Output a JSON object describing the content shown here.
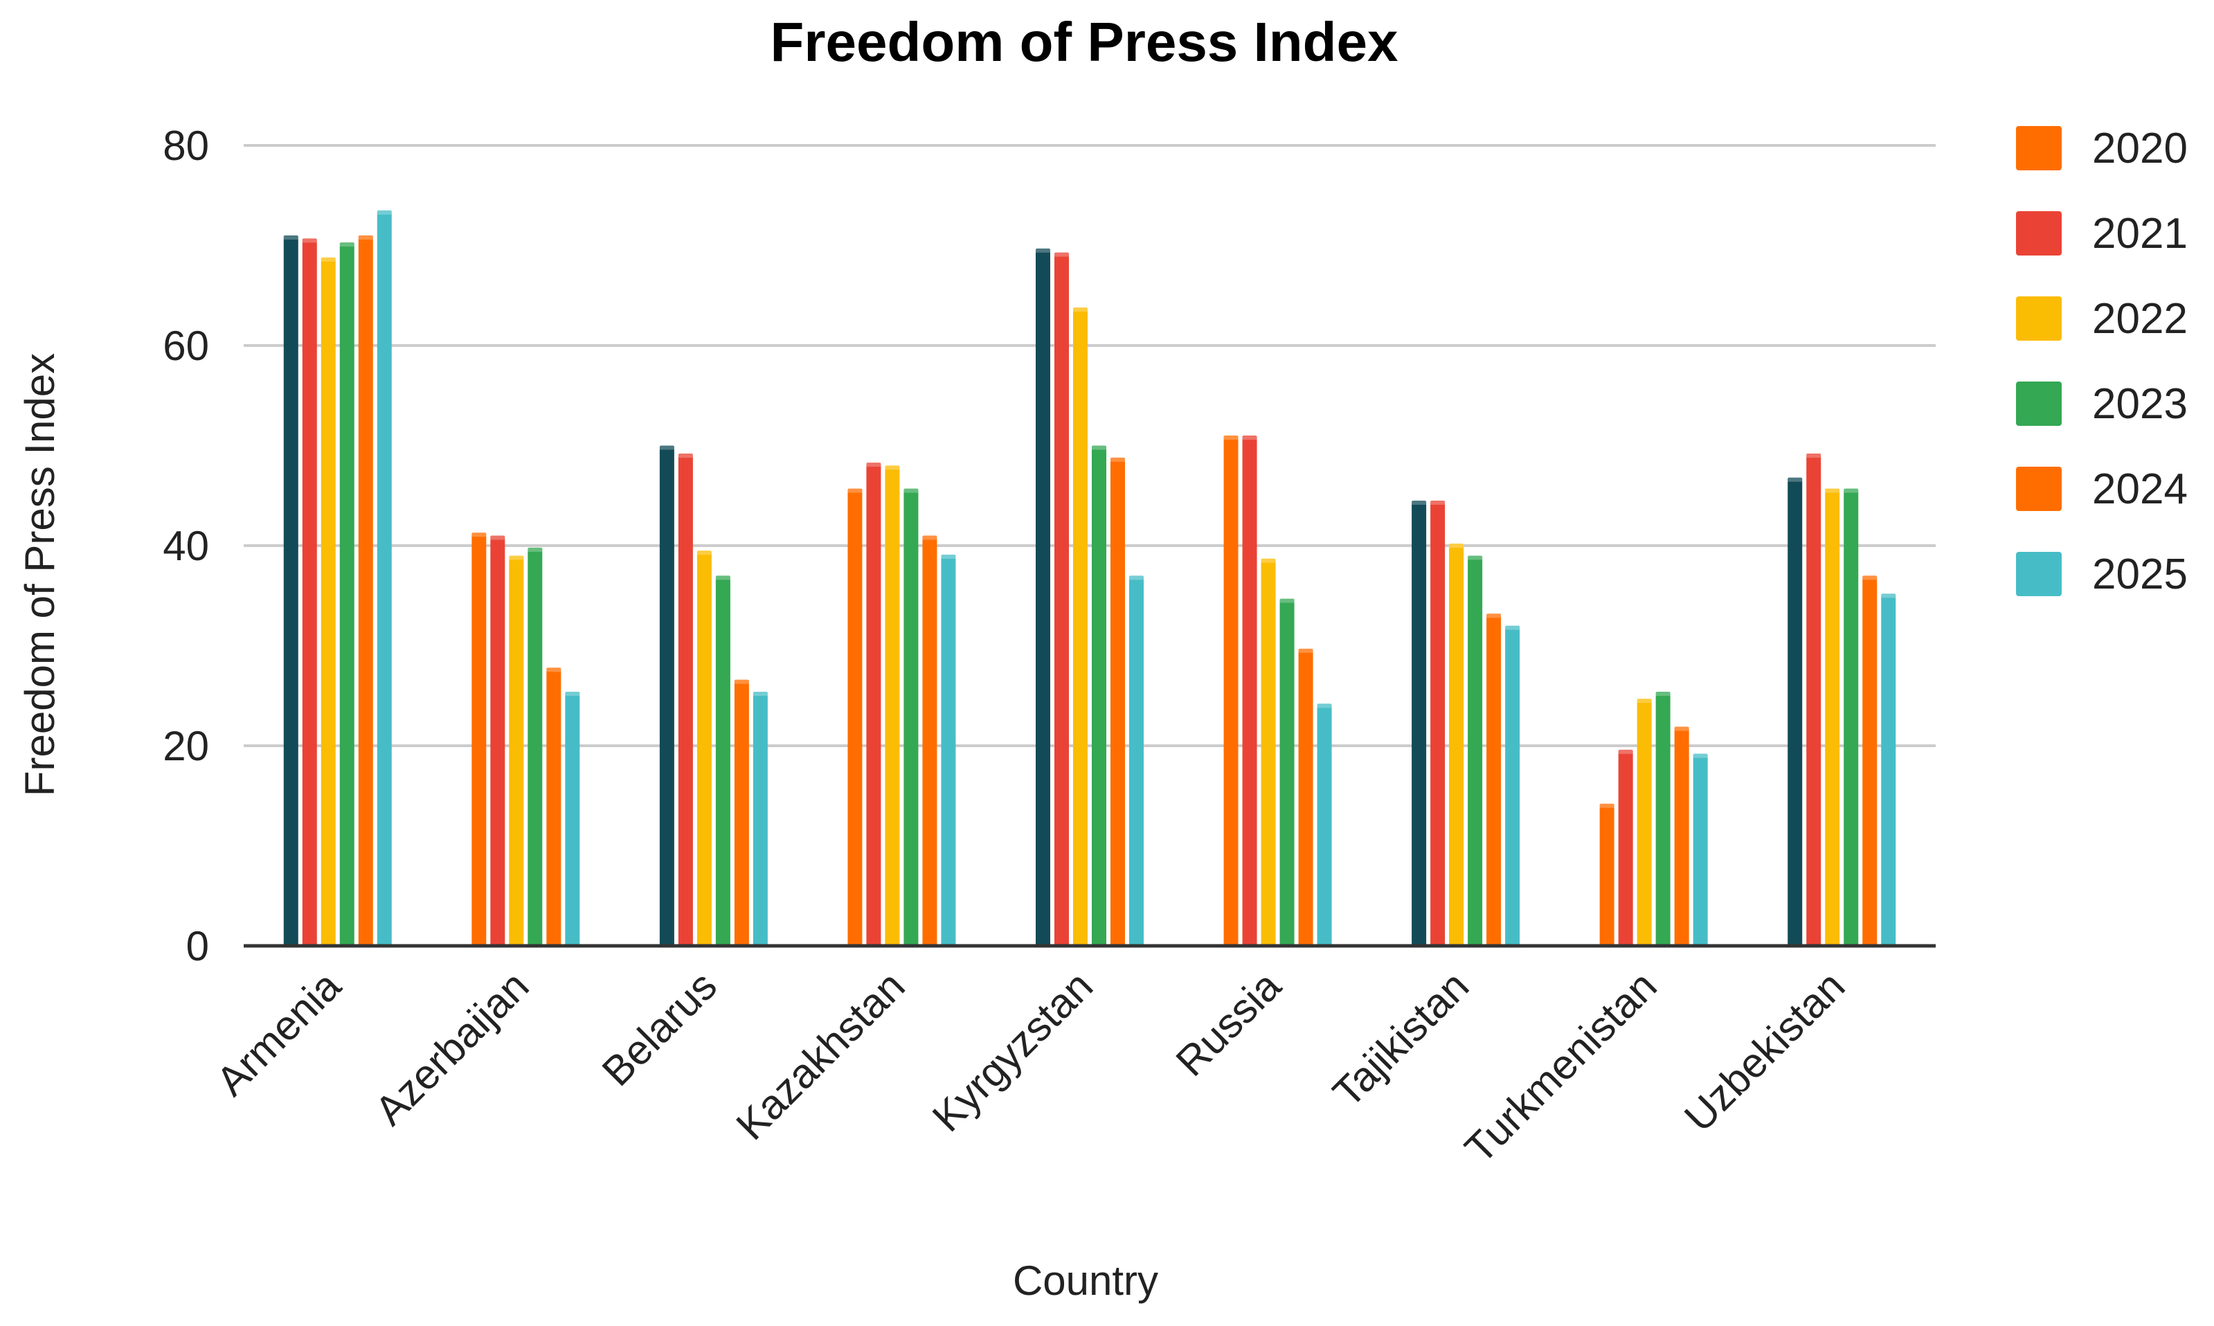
{
  "chart_data": {
    "type": "bar",
    "title": "Freedom of Press Index",
    "xlabel": "Country",
    "ylabel": "Freedom of Press Index",
    "ylim": [
      0,
      80
    ],
    "yticks": [
      0,
      20,
      40,
      60,
      80
    ],
    "grid": true,
    "legend_position": "right",
    "categories": [
      "Armenia",
      "Azerbaijan",
      "Belarus",
      "Kazakhstan",
      "Kyrgyzstan",
      "Russia",
      "Tajikistan",
      "Turkmenistan",
      "Uzbekistan"
    ],
    "series": [
      {
        "name": "2020",
        "color": "#FF6D01",
        "values": [
          71,
          41.3,
          50,
          45.7,
          69.7,
          51,
          44.5,
          14.2,
          46.8
        ]
      },
      {
        "name": "2021",
        "color": "#EA4335",
        "values": [
          70.7,
          41,
          49.2,
          48.3,
          69.3,
          51,
          44.5,
          19.6,
          49.2
        ]
      },
      {
        "name": "2022",
        "color": "#FBBC04",
        "values": [
          68.8,
          39,
          39.5,
          48,
          63.8,
          38.7,
          40.2,
          24.7,
          45.7
        ]
      },
      {
        "name": "2023",
        "color": "#34A853",
        "values": [
          70.3,
          39.8,
          37,
          45.7,
          50,
          34.7,
          39,
          25.4,
          45.7
        ]
      },
      {
        "name": "2024",
        "color": "#FF6D01",
        "values": [
          71,
          27.8,
          26.6,
          41,
          48.8,
          29.7,
          33.2,
          21.9,
          37
        ]
      },
      {
        "name": "2025",
        "color": "#46BDC6",
        "values": [
          73.5,
          25.4,
          25.4,
          39.1,
          37,
          24.2,
          32,
          19.2,
          35.2
        ]
      }
    ],
    "first_bar_override_color": "#124B57",
    "first_bar_override_categories": [
      "Armenia",
      "Belarus",
      "Kyrgyzstan",
      "Tajikistan",
      "Uzbekistan"
    ]
  }
}
